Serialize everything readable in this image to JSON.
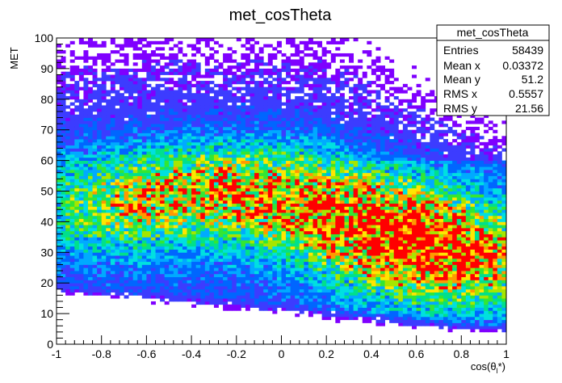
{
  "chart_data": {
    "type": "heatmap",
    "title": "met_cosTheta",
    "xlabel_main": "cos(θ",
    "xlabel_sub": "l",
    "xlabel_end": "*)",
    "ylabel": "MET",
    "xlim": [
      -1,
      1
    ],
    "ylim": [
      0,
      100
    ],
    "x_ticks": [
      "-1",
      "-0.8",
      "-0.6",
      "-0.4",
      "-0.2",
      "0",
      "0.2",
      "0.4",
      "0.6",
      "0.8",
      "1"
    ],
    "y_ticks": [
      "0",
      "10",
      "20",
      "30",
      "40",
      "50",
      "60",
      "70",
      "80",
      "90",
      "100"
    ],
    "grid": false,
    "colormap": [
      "#7f00ff",
      "#3c3cff",
      "#0066ff",
      "#00aaff",
      "#00e0e0",
      "#00e08c",
      "#33e633",
      "#a6e600",
      "#ffe600",
      "#ff9900",
      "#ff0000"
    ],
    "density_peaks": [
      {
        "x": 0.75,
        "y": 28,
        "level": 1.0
      },
      {
        "x": 0.35,
        "y": 42,
        "level": 0.8
      },
      {
        "x": -0.2,
        "y": 52,
        "level": 0.65
      },
      {
        "x": -0.75,
        "y": 45,
        "level": 0.55
      }
    ],
    "bins_x": 100,
    "bins_y": 100
  },
  "stats": {
    "title": "met_cosTheta",
    "rows": [
      {
        "label": "Entries",
        "value": "58439"
      },
      {
        "label": "Mean x",
        "value": "0.03372"
      },
      {
        "label": "Mean y",
        "value": "51.2"
      },
      {
        "label": "RMS x",
        "value": "0.5557"
      },
      {
        "label": "RMS y",
        "value": "21.56"
      }
    ]
  }
}
